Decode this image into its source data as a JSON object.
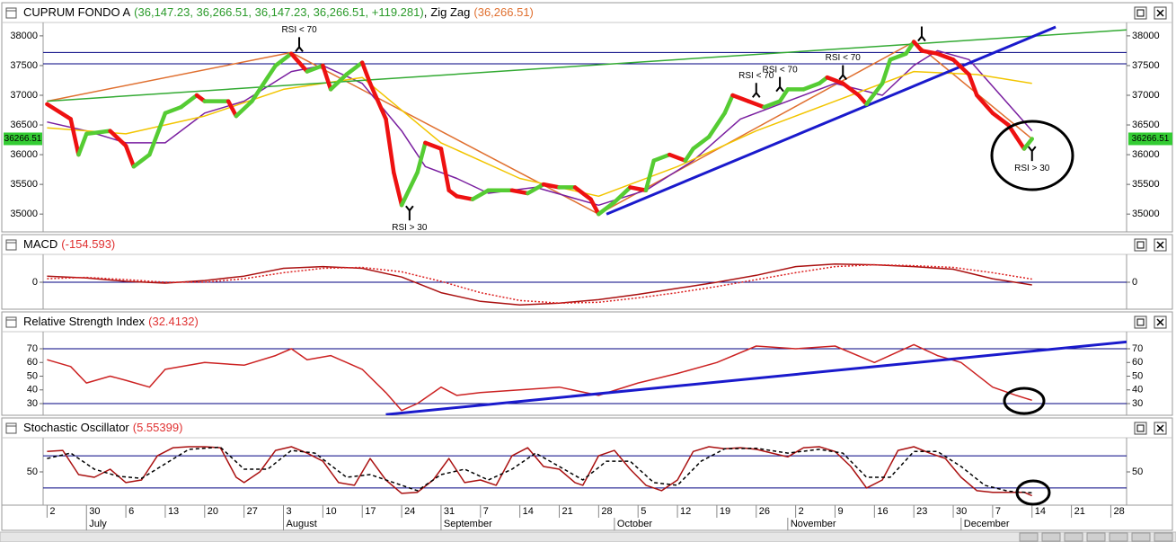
{
  "chart_data": [
    {
      "type": "line",
      "title": "CUPRUM FONDO A",
      "title_values": "(36,147.23, 36,266.51, 36,147.23, 36,266.51, +119.281)",
      "separator": ",",
      "value_label": "(36,266.51)",
      "last_label": "36266.51",
      "xlim": [
        -0.5,
        137
      ],
      "ylim": [
        34700,
        38180
      ],
      "yticks": [
        35000,
        35500,
        36000,
        36500,
        37000,
        37500,
        38000
      ],
      "hlines": [
        37720,
        37530
      ],
      "hline_color": "#000080",
      "series": [
        {
          "up_color": "#55cc33",
          "down_color": "#ee1111",
          "x": [
            0,
            3,
            4,
            5,
            8,
            10,
            11,
            13,
            15,
            17,
            19,
            20,
            23,
            24,
            26,
            28,
            29,
            31,
            33,
            35,
            36,
            38,
            40,
            41,
            43,
            44,
            45,
            47,
            48,
            50,
            51,
            52,
            54,
            56,
            57,
            59,
            61,
            63,
            65,
            67,
            69,
            70,
            72,
            74,
            76,
            77,
            79,
            81,
            82,
            84,
            86,
            87,
            89,
            91,
            93,
            94,
            96,
            98,
            99,
            101,
            103,
            104,
            106,
            107,
            109,
            110,
            111,
            113,
            115,
            117,
            118,
            120,
            122,
            123,
            124,
            125
          ],
          "values": [
            36850,
            36600,
            36000,
            36350,
            36400,
            36150,
            35800,
            36000,
            36700,
            36800,
            37000,
            36900,
            36900,
            36650,
            36900,
            37300,
            37500,
            37700,
            37400,
            37500,
            37100,
            37350,
            37550,
            37200,
            36600,
            35700,
            35150,
            35700,
            36200,
            36100,
            35400,
            35300,
            35250,
            35400,
            35400,
            35400,
            35350,
            35500,
            35450,
            35450,
            35250,
            35000,
            35200,
            35450,
            35400,
            35900,
            36000,
            35900,
            36100,
            36300,
            36700,
            37000,
            36900,
            36800,
            36900,
            37100,
            37100,
            37200,
            37300,
            37200,
            37000,
            36850,
            37200,
            37600,
            37700,
            37900,
            37750,
            37700,
            37600,
            37350,
            37000,
            36700,
            36500,
            36300,
            36100,
            36266.51
          ]
        },
        {
          "name": "Zig Zag",
          "color": "#e07030",
          "x": [
            0,
            31,
            70,
            110,
            125
          ],
          "values": [
            36900,
            37720,
            35000,
            37900,
            36266.51
          ]
        },
        {
          "color": "#7a1fa0",
          "x": [
            0,
            5,
            10,
            15,
            20,
            25,
            31,
            35,
            40,
            45,
            48,
            52,
            56,
            62,
            70,
            76,
            82,
            88,
            94,
            100,
            106,
            110,
            113,
            117,
            121,
            125
          ],
          "values": [
            36550,
            36400,
            36200,
            36200,
            36700,
            36900,
            37400,
            37500,
            37200,
            36400,
            35800,
            35600,
            35350,
            35450,
            35150,
            35400,
            35900,
            36600,
            36900,
            37200,
            37000,
            37500,
            37750,
            37600,
            37000,
            36400
          ]
        },
        {
          "color": "#f2c500",
          "x": [
            0,
            10,
            20,
            30,
            40,
            50,
            60,
            70,
            80,
            90,
            100,
            110,
            118,
            125
          ],
          "values": [
            36450,
            36350,
            36650,
            37100,
            37300,
            36200,
            35600,
            35300,
            35800,
            36400,
            36900,
            37400,
            37350,
            37200
          ]
        },
        {
          "color": "#33aa33",
          "x": [
            0,
            137
          ],
          "values": [
            36900,
            38100
          ]
        },
        {
          "color": "#1a1acc",
          "width": 3,
          "x": [
            71,
            128
          ],
          "values": [
            35000,
            38150
          ]
        }
      ],
      "annotations": [
        {
          "text": "RSI < 70",
          "x": 32,
          "y": 37720,
          "pos": "above"
        },
        {
          "text": "RSI > 30",
          "x": 46,
          "y": 35150,
          "pos": "below"
        },
        {
          "text": "RSI < 70",
          "x": 90,
          "y": 36950,
          "pos": "above"
        },
        {
          "text": "RSI < 70",
          "x": 93,
          "y": 37050,
          "pos": "above"
        },
        {
          "text": "RSI < 70",
          "x": 101,
          "y": 37250,
          "pos": "above"
        },
        {
          "x": 111,
          "y": 37900,
          "pos": "above"
        },
        {
          "text": "RSI > 30",
          "x": 125,
          "y": 36150,
          "pos": "below"
        }
      ]
    },
    {
      "type": "line",
      "title": "MACD",
      "value_label": "(-154.593)",
      "xlim": [
        -0.5,
        137
      ],
      "ylim": [
        -1550,
        1550
      ],
      "yticks": [
        0
      ],
      "hlines": [
        0
      ],
      "hline_color": "#000080",
      "series": [
        {
          "color": "#aa1111",
          "x": [
            0,
            5,
            10,
            15,
            20,
            25,
            30,
            35,
            40,
            45,
            50,
            55,
            60,
            65,
            70,
            75,
            80,
            85,
            90,
            95,
            100,
            105,
            110,
            115,
            120,
            125
          ],
          "values": [
            350,
            250,
            50,
            -50,
            100,
            350,
            800,
            900,
            800,
            300,
            -600,
            -1100,
            -1300,
            -1200,
            -1000,
            -700,
            -350,
            0,
            400,
            900,
            1050,
            1000,
            900,
            750,
            200,
            -154.593
          ]
        },
        {
          "color": "#dd2222",
          "style": "dotted",
          "x": [
            0,
            5,
            10,
            15,
            20,
            25,
            30,
            35,
            40,
            45,
            50,
            55,
            60,
            65,
            70,
            75,
            80,
            85,
            90,
            95,
            100,
            105,
            110,
            115,
            120,
            125
          ],
          "values": [
            200,
            280,
            150,
            0,
            0,
            200,
            550,
            800,
            850,
            600,
            50,
            -600,
            -1050,
            -1200,
            -1150,
            -900,
            -600,
            -250,
            150,
            550,
            900,
            1000,
            950,
            850,
            550,
            180
          ]
        }
      ]
    },
    {
      "type": "line",
      "title": "Relative Strength Index",
      "value_label": "(32.4132)",
      "xlim": [
        -0.5,
        137
      ],
      "ylim": [
        21.5,
        81.8
      ],
      "yticks": [
        30,
        40,
        50,
        60,
        70
      ],
      "hlines": [
        70,
        30
      ],
      "hline_color": "#000080",
      "series": [
        {
          "color": "#cc2222",
          "x": [
            0,
            3,
            5,
            8,
            10,
            13,
            15,
            20,
            25,
            29,
            31,
            33,
            36,
            40,
            43,
            45,
            47,
            50,
            52,
            55,
            60,
            65,
            70,
            75,
            80,
            85,
            90,
            95,
            100,
            105,
            110,
            113,
            116,
            120,
            123,
            125
          ],
          "values": [
            62,
            57,
            45,
            50,
            47,
            42,
            55,
            60,
            58,
            65,
            70,
            62,
            65,
            55,
            38,
            25,
            30,
            42,
            36,
            38,
            40,
            42,
            36,
            45,
            52,
            60,
            72,
            70,
            72,
            60,
            73,
            65,
            60,
            42,
            36,
            32.4132
          ]
        },
        {
          "color": "#1a1acc",
          "width": 3,
          "x": [
            43,
            137
          ],
          "values": [
            22,
            75
          ]
        }
      ]
    },
    {
      "type": "line",
      "title": "Stochastic Oscillator",
      "value_label": "(5.55399)",
      "xlim": [
        -0.5,
        137
      ],
      "ylim": [
        -12,
        112
      ],
      "yticks": [
        50
      ],
      "hlines": [
        80,
        20
      ],
      "hline_color": "#000080",
      "series": [
        {
          "color": "#aa1111",
          "x": [
            0,
            2,
            4,
            6,
            8,
            10,
            12,
            14,
            16,
            18,
            20,
            22,
            24,
            25,
            27,
            29,
            31,
            33,
            35,
            37,
            39,
            41,
            43,
            45,
            47,
            49,
            51,
            53,
            55,
            57,
            59,
            61,
            63,
            65,
            67,
            68,
            70,
            72,
            74,
            76,
            78,
            80,
            82,
            84,
            86,
            88,
            90,
            92,
            94,
            96,
            98,
            100,
            102,
            104,
            106,
            108,
            110,
            112,
            114,
            116,
            118,
            120,
            122,
            124,
            125
          ],
          "values": [
            88,
            90,
            45,
            40,
            55,
            30,
            35,
            80,
            95,
            97,
            97,
            95,
            40,
            30,
            50,
            90,
            97,
            85,
            70,
            30,
            25,
            75,
            35,
            10,
            12,
            35,
            75,
            30,
            35,
            25,
            80,
            95,
            60,
            55,
            30,
            25,
            80,
            90,
            55,
            25,
            15,
            35,
            88,
            97,
            93,
            95,
            92,
            85,
            78,
            95,
            97,
            88,
            60,
            20,
            35,
            90,
            97,
            85,
            75,
            40,
            15,
            12,
            12,
            12,
            5.55399
          ]
        },
        {
          "color": "#000000",
          "style": "dashed",
          "x": [
            0,
            3,
            6,
            9,
            12,
            15,
            18,
            22,
            25,
            28,
            31,
            34,
            38,
            41,
            44,
            47,
            50,
            53,
            56,
            59,
            62,
            65,
            68,
            71,
            74,
            77,
            80,
            83,
            86,
            90,
            94,
            98,
            101,
            104,
            107,
            110,
            113,
            116,
            119,
            122,
            125
          ],
          "values": [
            75,
            85,
            55,
            42,
            38,
            65,
            92,
            96,
            55,
            55,
            90,
            85,
            40,
            45,
            30,
            15,
            45,
            55,
            35,
            55,
            85,
            60,
            35,
            70,
            70,
            30,
            25,
            70,
            93,
            94,
            85,
            92,
            85,
            40,
            40,
            88,
            88,
            60,
            25,
            14,
            11
          ]
        }
      ],
      "xticks": [
        {
          "value": 0,
          "label": "2"
        },
        {
          "value": 5,
          "label": "30"
        },
        {
          "value": 10,
          "label": "6"
        },
        {
          "value": 15,
          "label": "13"
        },
        {
          "value": 20,
          "label": "20"
        },
        {
          "value": 25,
          "label": "27"
        },
        {
          "value": 30,
          "label": "3"
        },
        {
          "value": 35,
          "label": "10"
        },
        {
          "value": 40,
          "label": "17"
        },
        {
          "value": 45,
          "label": "24"
        },
        {
          "value": 50,
          "label": "31"
        },
        {
          "value": 55,
          "label": "7"
        },
        {
          "value": 60,
          "label": "14"
        },
        {
          "value": 65,
          "label": "21"
        },
        {
          "value": 70,
          "label": "28"
        },
        {
          "value": 75,
          "label": "5"
        },
        {
          "value": 80,
          "label": "12"
        },
        {
          "value": 85,
          "label": "19"
        },
        {
          "value": 90,
          "label": "26"
        },
        {
          "value": 95,
          "label": "2"
        },
        {
          "value": 100,
          "label": "9"
        },
        {
          "value": 105,
          "label": "16"
        },
        {
          "value": 110,
          "label": "23"
        },
        {
          "value": 115,
          "label": "30"
        },
        {
          "value": 120,
          "label": "7"
        },
        {
          "value": 125,
          "label": "14"
        },
        {
          "value": 130,
          "label": "21"
        },
        {
          "value": 135,
          "label": "28"
        }
      ],
      "months": [
        {
          "value": 5,
          "label": "July"
        },
        {
          "value": 30,
          "label": "August"
        },
        {
          "value": 50,
          "label": "September"
        },
        {
          "value": 72,
          "label": "October"
        },
        {
          "value": 94,
          "label": "November"
        },
        {
          "value": 116,
          "label": "December"
        }
      ]
    }
  ]
}
